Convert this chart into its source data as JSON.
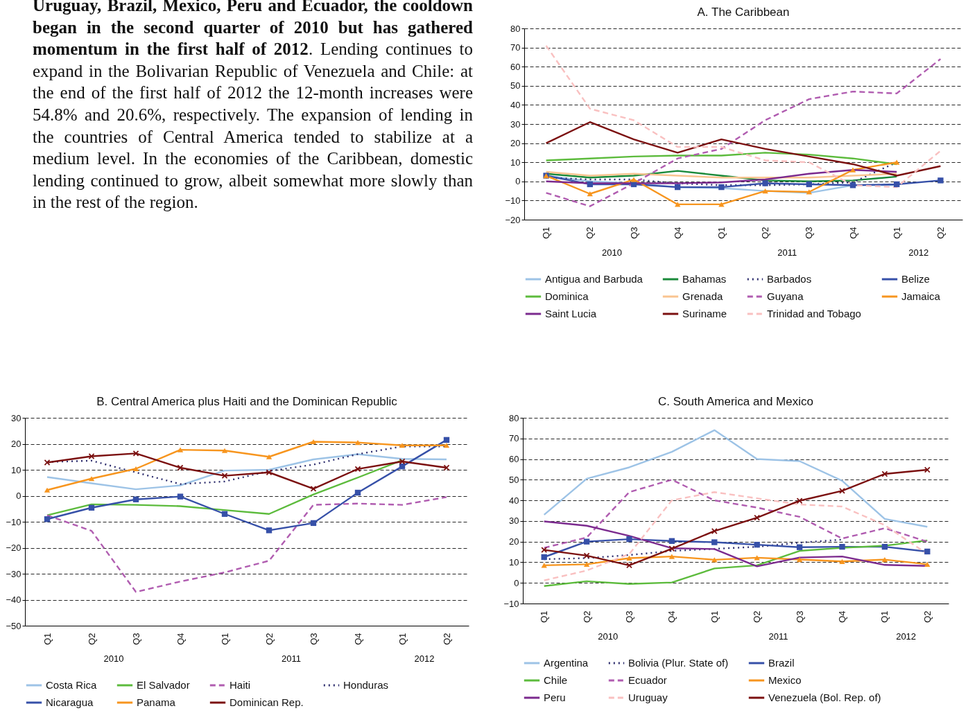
{
  "chart_data": [
    {
      "type": "other",
      "annotations": [
        "Uruguay, Brazil, Mexico, Peru and Ecuador, the cooldown began in the second quarter of 2010 but has gathered momentum in the first half of 2012",
        ". Lending continues to expand in the Bolivarian Republic of Venezuela and Chile: at the end of the first half of 2012 the 12-month increases were 54.8% and 20.6%, respectively. The expansion of lending in the countries of Central America tended to stabilize at a medium level. In the economies of the Caribbean, domestic lending continued to grow, albeit somewhat more slowly than in the rest of the region."
      ]
    },
    {
      "type": "line",
      "title": "A. The Caribbean",
      "categories": [
        "Q1",
        "Q2",
        "Q3",
        "Q4",
        "Q1",
        "Q2",
        "Q3",
        "Q4",
        "Q1",
        "Q2"
      ],
      "annotations": [
        "2010",
        "2011",
        "2012"
      ],
      "ylim": [
        -20,
        80
      ],
      "yticks": [
        -20,
        -10,
        0,
        10,
        20,
        30,
        40,
        50,
        60,
        70,
        80
      ],
      "grid": "y",
      "legend": "bottom",
      "series": [
        {
          "name": "Antigua and Barbuda",
          "color": "#9dc3e6",
          "line_style": "solid",
          "marker": "none",
          "values": [
            3,
            0,
            -1,
            -3,
            -3.5,
            -5,
            -6,
            -2,
            -2,
            null
          ]
        },
        {
          "name": "Bahamas",
          "color": "#1a8a3a",
          "line_style": "solid",
          "marker": "none",
          "values": [
            4,
            2,
            3,
            5.5,
            3,
            0.5,
            0,
            0.5,
            2.5,
            null
          ]
        },
        {
          "name": "Barbados",
          "color": "#2e2e6e",
          "line_style": "dotted",
          "marker": "none",
          "values": [
            2,
            1,
            1,
            -1,
            -2,
            -2,
            -1.5,
            -0.5,
            10,
            null
          ]
        },
        {
          "name": "Belize",
          "color": "#3650a8",
          "line_style": "solid",
          "marker": "square",
          "values": [
            3,
            -1.5,
            -1.5,
            -3,
            -3,
            -1,
            -1.5,
            -2,
            -1.5,
            0.5
          ]
        },
        {
          "name": "Dominica",
          "color": "#5cbb3c",
          "line_style": "solid",
          "marker": "none",
          "values": [
            11,
            12,
            13,
            13.5,
            13.5,
            15,
            14,
            12,
            9,
            null
          ]
        },
        {
          "name": "Grenada",
          "color": "#f9c490",
          "line_style": "solid",
          "marker": "none",
          "values": [
            5,
            3,
            4,
            3,
            2,
            2,
            2,
            3,
            4,
            null
          ]
        },
        {
          "name": "Guyana",
          "color": "#b05cb0",
          "line_style": "dashed",
          "marker": "none",
          "values": [
            -6,
            -13,
            -1,
            12,
            17,
            32,
            43,
            47,
            46,
            64
          ]
        },
        {
          "name": "Jamaica",
          "color": "#f7951e",
          "line_style": "solid",
          "marker": "triangle",
          "values": [
            3,
            -6.5,
            1,
            -12,
            -12,
            -5,
            -5.5,
            6,
            10,
            null
          ]
        },
        {
          "name": "Saint Lucia",
          "color": "#7b2a8e",
          "line_style": "solid",
          "marker": "none",
          "values": [
            0,
            -1,
            -1,
            -1,
            -0.5,
            1,
            4,
            6,
            5,
            null
          ]
        },
        {
          "name": "Suriname",
          "color": "#7b1010",
          "line_style": "solid",
          "marker": "none",
          "values": [
            20,
            31,
            22,
            15,
            22,
            17,
            13,
            9,
            3,
            8
          ]
        },
        {
          "name": "Trinidad and Tobago",
          "color": "#f9c0c0",
          "line_style": "dashed",
          "marker": "none",
          "values": [
            71,
            38,
            32,
            18,
            18,
            11,
            10,
            -2,
            -3,
            16
          ]
        }
      ]
    },
    {
      "type": "line",
      "title": "B. Central America plus Haiti and the Dominican Republic",
      "categories": [
        "Q1",
        "Q2",
        "Q3",
        "Q4",
        "Q1",
        "Q2",
        "Q3",
        "Q4",
        "Q1",
        "Q2"
      ],
      "annotations": [
        "2010",
        "2011",
        "2012"
      ],
      "ylim": [
        -50,
        30
      ],
      "yticks": [
        -50,
        -40,
        -30,
        -20,
        -10,
        0,
        10,
        20,
        30
      ],
      "grid": "y",
      "legend": "bottom",
      "series": [
        {
          "name": "Costa Rica",
          "color": "#9dc3e6",
          "line_style": "solid",
          "marker": "none",
          "values": [
            7.2,
            4.8,
            2.5,
            4,
            9.7,
            10,
            14,
            16,
            14.2,
            14
          ]
        },
        {
          "name": "El Salvador",
          "color": "#5cbb3c",
          "line_style": "solid",
          "marker": "none",
          "values": [
            -7.5,
            -3.3,
            -3.5,
            -4,
            -5.5,
            -7,
            0.5,
            7,
            13.7,
            null
          ]
        },
        {
          "name": "Haiti",
          "color": "#b05cb0",
          "line_style": "dashed",
          "marker": "none",
          "values": [
            -7.5,
            -13.5,
            -37,
            -33,
            -29.5,
            -25,
            -3.5,
            -3,
            -3.5,
            -0.5
          ]
        },
        {
          "name": "Honduras",
          "color": "#2e2e6e",
          "line_style": "dotted",
          "marker": "none",
          "values": [
            13,
            13.5,
            9,
            4.5,
            5.5,
            9.5,
            12,
            16,
            19,
            19
          ]
        },
        {
          "name": "Nicaragua",
          "color": "#3650a8",
          "line_style": "solid",
          "marker": "square",
          "values": [
            -9,
            -4.6,
            -1.4,
            -0.3,
            -7,
            -13.3,
            -10.5,
            1.2,
            11.3,
            21.5
          ]
        },
        {
          "name": "Panama",
          "color": "#f7951e",
          "line_style": "solid",
          "marker": "triangle",
          "values": [
            2.2,
            6.6,
            10.4,
            17.7,
            17.4,
            15,
            20.8,
            20.5,
            19.4,
            19.4
          ]
        },
        {
          "name": "Dominican Rep.",
          "color": "#7b1010",
          "line_style": "solid",
          "marker": "cross",
          "values": [
            12.8,
            15.2,
            16.3,
            10.8,
            7.7,
            9,
            2.7,
            10.3,
            13.2,
            10.8
          ]
        }
      ]
    },
    {
      "type": "line",
      "title": "C. South America and Mexico",
      "categories": [
        "Q1",
        "Q2",
        "Q3",
        "Q4",
        "Q1",
        "Q2",
        "Q3",
        "Q4",
        "Q1",
        "Q2"
      ],
      "annotations": [
        "2010",
        "2011",
        "2012"
      ],
      "ylim": [
        -10,
        80
      ],
      "yticks": [
        -10,
        0,
        10,
        20,
        30,
        40,
        50,
        60,
        70,
        80
      ],
      "grid": "y",
      "legend": "bottom",
      "series": [
        {
          "name": "Argentina",
          "color": "#9dc3e6",
          "line_style": "solid",
          "marker": "none",
          "values": [
            33,
            50.5,
            56,
            63.5,
            74,
            60,
            59,
            49.5,
            31,
            27.2
          ]
        },
        {
          "name": "Bolivia (Plur. State of)",
          "color": "#2e2e6e",
          "line_style": "dotted",
          "marker": "none",
          "values": [
            11.5,
            12,
            13.5,
            15.5,
            16.5,
            17.5,
            19.5,
            21,
            null,
            null
          ]
        },
        {
          "name": "Brazil",
          "color": "#3650a8",
          "line_style": "solid",
          "marker": "square",
          "values": [
            12.5,
            20,
            21.2,
            20.3,
            19.7,
            18.5,
            17.3,
            17.5,
            17.5,
            15.2
          ]
        },
        {
          "name": "Chile",
          "color": "#5cbb3c",
          "line_style": "solid",
          "marker": "none",
          "values": [
            -1.5,
            0.8,
            -0.5,
            0.2,
            7,
            8.5,
            15.5,
            17,
            18,
            20.6
          ]
        },
        {
          "name": "Ecuador",
          "color": "#b05cb0",
          "line_style": "dashed",
          "marker": "none",
          "values": [
            17,
            22,
            44,
            50,
            40,
            36.5,
            32,
            21.5,
            26.5,
            20
          ]
        },
        {
          "name": "Mexico",
          "color": "#f7951e",
          "line_style": "solid",
          "marker": "triangle",
          "values": [
            8.5,
            9,
            12,
            12.8,
            11.2,
            12.2,
            11.3,
            10.4,
            11.3,
            9
          ]
        },
        {
          "name": "Peru",
          "color": "#7b2a8e",
          "line_style": "solid",
          "marker": "none",
          "values": [
            29.8,
            27.7,
            22.8,
            16.8,
            16.4,
            8,
            12.3,
            12.8,
            8.7,
            8.2
          ]
        },
        {
          "name": "Uruguay",
          "color": "#f9c0c0",
          "line_style": "dashed",
          "marker": "none",
          "values": [
            1.2,
            6,
            14,
            40,
            44,
            41,
            38,
            37,
            28,
            14
          ]
        },
        {
          "name": "Venezuela (Bol. Rep. of)",
          "color": "#7b1010",
          "line_style": "solid",
          "marker": "cross",
          "values": [
            16,
            13.2,
            8.5,
            16.6,
            25.1,
            31.6,
            39.8,
            44.6,
            52.8,
            54.8
          ]
        }
      ]
    }
  ]
}
